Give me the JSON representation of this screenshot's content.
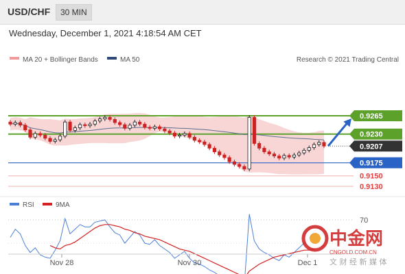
{
  "header": {
    "symbol": "USD/CHF",
    "timeframe": "30 MIN",
    "datetime": "Wednesday, December 1, 2021 4:18:54 AM CET"
  },
  "legend": {
    "bb_label": "MA 20 + Bollinger Bands",
    "ma50_label": "MA 50",
    "credit": "Research © 2021 Trading Central"
  },
  "watermark": {
    "cn_title": "中金网",
    "domain": "CNGOLD.COM.CN",
    "cn_sub": "文 财 经 新 媒 体"
  },
  "colors": {
    "up": "#1a1a1a",
    "down": "#cc2222",
    "bb_fill": "#f9d6d6",
    "ma50": "#5a6f8f",
    "green": "#5ba12a",
    "blue": "#2a63c6",
    "red": "#e04040",
    "dark": "#333333",
    "rsi": "#4a7fd6",
    "rsi_ma": "#d42020"
  },
  "chart_data": [
    {
      "type": "candlestick",
      "title": "USD/CHF 30 MIN",
      "x_tick_labels": [
        "Nov 28",
        "Nov 30",
        "Dec 1"
      ],
      "ylim": [
        0.911,
        0.929
      ],
      "series": [
        {
          "name": "MA 20 + Bollinger Bands"
        },
        {
          "name": "MA 50"
        }
      ],
      "levels": [
        {
          "value": 0.9265,
          "label": "0.9265",
          "style": "green"
        },
        {
          "value": 0.923,
          "label": "0.9230",
          "style": "green"
        },
        {
          "value": 0.9207,
          "label": "0.9207",
          "style": "dark"
        },
        {
          "value": 0.9175,
          "label": "0.9175",
          "style": "blue"
        },
        {
          "value": 0.915,
          "label": "0.9150",
          "style": "red"
        },
        {
          "value": 0.913,
          "label": "0.9130",
          "style": "red"
        }
      ],
      "closes": [
        0.9249,
        0.9252,
        0.9247,
        0.9238,
        0.9224,
        0.9231,
        0.9228,
        0.9222,
        0.9216,
        0.9219,
        0.9226,
        0.9253,
        0.9237,
        0.9242,
        0.9248,
        0.9246,
        0.9249,
        0.9255,
        0.9259,
        0.9262,
        0.9258,
        0.9252,
        0.9248,
        0.9241,
        0.9247,
        0.9253,
        0.9249,
        0.9243,
        0.9241,
        0.9244,
        0.924,
        0.9236,
        0.9232,
        0.9226,
        0.9228,
        0.9231,
        0.9224,
        0.9218,
        0.9215,
        0.921,
        0.9203,
        0.9196,
        0.919,
        0.9185,
        0.9177,
        0.9172,
        0.9168,
        0.9163,
        0.9262,
        0.9212,
        0.9203,
        0.9196,
        0.9192,
        0.9188,
        0.9184,
        0.9189,
        0.9186,
        0.919,
        0.9194,
        0.9199,
        0.9204,
        0.921,
        0.9214,
        0.9207
      ],
      "projection": {
        "from": 0.9207,
        "to": 0.9265
      }
    },
    {
      "type": "line",
      "title": "RSI",
      "series": [
        {
          "name": "RSI",
          "values": [
            55,
            62,
            58,
            48,
            42,
            46,
            40,
            38,
            37,
            44,
            52,
            71,
            58,
            62,
            66,
            64,
            64,
            68,
            69,
            70,
            64,
            59,
            57,
            50,
            55,
            60,
            57,
            50,
            49,
            53,
            48,
            45,
            42,
            37,
            40,
            43,
            37,
            33,
            32,
            30,
            27,
            25,
            22,
            21,
            19,
            18,
            16,
            14,
            75,
            52,
            45,
            42,
            40,
            37,
            35,
            40,
            38,
            42,
            46,
            50,
            54,
            60,
            63,
            57
          ]
        },
        {
          "name": "9MA",
          "values": [
            null,
            null,
            null,
            null,
            null,
            null,
            null,
            null,
            48,
            46,
            45,
            48,
            49,
            51,
            54,
            57,
            60,
            63,
            65,
            66,
            66,
            65,
            64,
            62,
            61,
            59,
            58,
            56,
            55,
            54,
            53,
            51,
            49,
            47,
            45,
            44,
            43,
            41,
            39,
            37,
            35,
            33,
            31,
            29,
            27,
            25,
            23,
            20,
            26,
            29,
            32,
            34,
            36,
            38,
            39,
            40,
            41,
            42,
            43,
            44,
            44,
            45,
            47,
            48
          ]
        }
      ],
      "ytick": 70
    }
  ]
}
